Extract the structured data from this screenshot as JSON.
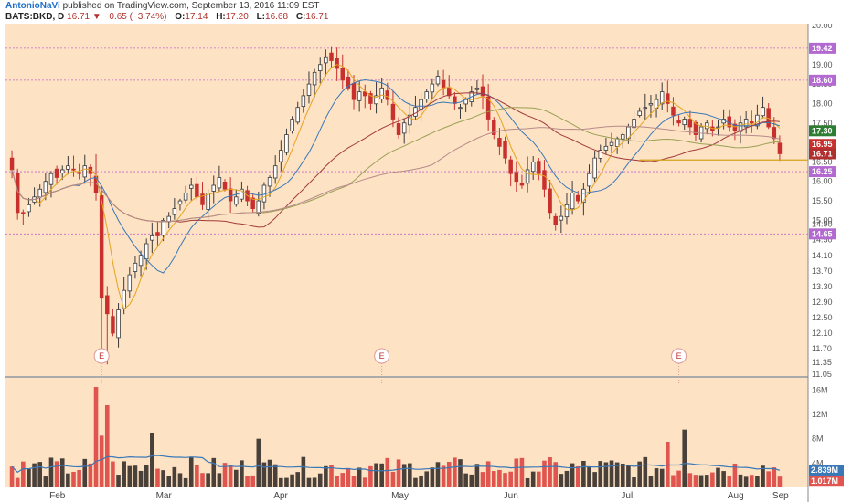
{
  "header": {
    "author": "AntonioNaVi",
    "published_text": "published on TradingView.com, September 13, 2016 11:09 EST",
    "symbol": "BATS:BKD, D",
    "last": "16.71",
    "change_arrow": "▼",
    "change": "−0.65 (−3.74%)",
    "o_label": "O:",
    "o_value": "17.14",
    "h_label": "H:",
    "h_value": "17.20",
    "l_label": "L:",
    "l_value": "16.68",
    "c_label": "C:",
    "c_value": "16.71"
  },
  "colors": {
    "background": "#fde2c4",
    "up": "#3a3a3a",
    "down": "#c8302e",
    "vol_up": "#4a403a",
    "vol_down": "#e0554f",
    "ma_blue": "#3a78b8",
    "ma_orange": "#e5a31e",
    "ma_darkred": "#a33a3a",
    "ma_olive": "#9aa155",
    "ma_brown": "#b88a8a",
    "hline_pink": "#c56bc6",
    "badge_purple": "#b36ad0",
    "support_line": "#d4a11a"
  },
  "chart_data": {
    "type": "candlestick",
    "x_labels": [
      "Feb",
      "Mar",
      "Apr",
      "May",
      "Jun",
      "Jul",
      "Aug",
      "Sep"
    ],
    "y_tick_labels": [
      "20.00",
      "19.00",
      "18.50",
      "18.00",
      "17.50",
      "17.00",
      "16.50",
      "16.00",
      "15.50",
      "15.00",
      "14.90",
      "14.50",
      "14.10",
      "13.70",
      "13.30",
      "12.90",
      "12.50",
      "12.10",
      "11.70",
      "11.35",
      "11.05"
    ],
    "ylim": [
      11.0,
      20.05
    ],
    "grid": false,
    "horizontal_lines": [
      19.42,
      18.6,
      16.25,
      14.65
    ],
    "support_line": {
      "value": 16.55,
      "from_date": "Jul 25",
      "to_date": "Sep 13"
    },
    "price_labels": [
      {
        "text": "19.42",
        "value": 19.42,
        "color": "#b36ad0"
      },
      {
        "text": "18.60",
        "value": 18.6,
        "color": "#b36ad0"
      },
      {
        "text": "17.30",
        "value": 17.3,
        "color": "#2e7d32"
      },
      {
        "text": "16.95",
        "value": 16.95,
        "color": "#c8302e"
      },
      {
        "text": "16.71",
        "value": 16.71,
        "color": "#b03030"
      },
      {
        "text": "16.25",
        "value": 16.25,
        "color": "#b36ad0"
      },
      {
        "text": "14.65",
        "value": 14.65,
        "color": "#b36ad0"
      }
    ],
    "earnings_markers": [
      {
        "label": "E",
        "date": "Feb 11"
      },
      {
        "label": "E",
        "date": "May 5"
      },
      {
        "label": "E",
        "date": "Aug 4"
      }
    ],
    "ohlc_approx": [
      16.3,
      15.2,
      15.2,
      15.4,
      15.6,
      15.8,
      16.0,
      16.2,
      16.1,
      16.3,
      16.4,
      16.3,
      16.2,
      16.4,
      16.2,
      15.7,
      13.0,
      12.6,
      12.1,
      12.7,
      13.2,
      13.6,
      13.9,
      14.1,
      14.4,
      14.6,
      14.6,
      15.0,
      15.1,
      15.3,
      15.5,
      15.7,
      15.9,
      15.6,
      15.4,
      15.7,
      15.9,
      16.1,
      15.8,
      15.5,
      15.6,
      15.8,
      15.5,
      15.3,
      15.5,
      15.9,
      16.1,
      16.4,
      16.8,
      17.2,
      17.6,
      17.9,
      18.2,
      18.5,
      18.8,
      19.0,
      19.2,
      19.1,
      18.9,
      18.6,
      18.4,
      18.1,
      18.3,
      18.2,
      18.0,
      18.2,
      18.4,
      18.1,
      17.6,
      17.2,
      17.5,
      17.7,
      17.9,
      18.1,
      18.3,
      18.5,
      18.7,
      18.4,
      18.2,
      18.0,
      17.9,
      18.1,
      18.3,
      18.4,
      18.2,
      17.6,
      17.2,
      16.9,
      16.6,
      16.2,
      16.0,
      15.9,
      16.3,
      16.5,
      16.2,
      15.8,
      15.2,
      14.9,
      15.1,
      15.4,
      15.7,
      15.5,
      15.8,
      16.2,
      16.6,
      16.8,
      16.9,
      17.0,
      17.1,
      17.2,
      17.4,
      17.6,
      17.8,
      17.9,
      18.0,
      18.1,
      18.3,
      18.0,
      17.7,
      17.5,
      17.6,
      17.4,
      17.2,
      17.4,
      17.5,
      17.3,
      17.4,
      17.6,
      17.4,
      17.3,
      17.5,
      17.6,
      17.5,
      17.7,
      17.9,
      17.4,
      17.1,
      16.71
    ],
    "volume": {
      "y_tick_labels": [
        "16M",
        "12M",
        "8M",
        "4M"
      ],
      "ylim": [
        0,
        18
      ],
      "last_labels": [
        {
          "text": "2.839M",
          "value": 2.839,
          "color": "#3a78b8"
        },
        {
          "text": "1.017M",
          "value": 1.017,
          "color": "#e0554f"
        }
      ]
    }
  }
}
